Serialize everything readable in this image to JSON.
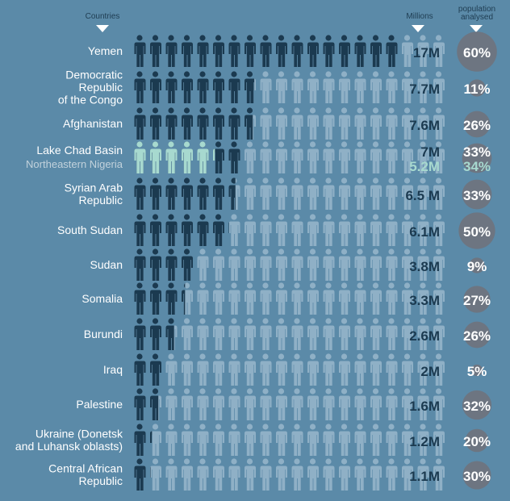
{
  "headers": {
    "countries": "Countries",
    "millions": "Millions",
    "population_analysed": [
      "population",
      "analysed"
    ]
  },
  "colors": {
    "background": "#5b8aa8",
    "affected": "#1b3a50",
    "unaffected": "#8fb0c6",
    "secondary": "#a7d9cf",
    "circle": "#6d7581"
  },
  "chart_data": {
    "type": "pictogram",
    "unit": "1 figure = 1 million people",
    "max_figures": 20,
    "rows": [
      {
        "country": [
          "Yemen"
        ],
        "value": 17,
        "value_label": "17M",
        "percent": 60,
        "percent_label": "60%"
      },
      {
        "country": [
          "Democratic",
          "Republic",
          "of the Congo"
        ],
        "value": 7.7,
        "value_label": "7.7M",
        "percent": 11,
        "percent_label": "11%"
      },
      {
        "country": [
          "Afghanistan"
        ],
        "value": 7.6,
        "value_label": "7.6M",
        "percent": 26,
        "percent_label": "26%"
      },
      {
        "country": [
          "Lake Chad Basin"
        ],
        "value": 7,
        "value_label": "7M",
        "percent": 33,
        "percent_label": "33%",
        "sub": {
          "country": "Northeastern Nigeria",
          "value": 5.2,
          "value_label": "5.2M",
          "percent": 34,
          "percent_label": "34%"
        }
      },
      {
        "country": [
          "Syrian Arab",
          "Republic"
        ],
        "value": 6.5,
        "value_label": "6.5 M",
        "percent": 33,
        "percent_label": "33%"
      },
      {
        "country": [
          "South Sudan"
        ],
        "value": 6.1,
        "value_label": "6.1M",
        "percent": 50,
        "percent_label": "50%"
      },
      {
        "country": [
          "Sudan"
        ],
        "value": 3.8,
        "value_label": "3.8M",
        "percent": 9,
        "percent_label": "9%"
      },
      {
        "country": [
          "Somalia"
        ],
        "value": 3.3,
        "value_label": "3.3M",
        "percent": 27,
        "percent_label": "27%"
      },
      {
        "country": [
          "Burundi"
        ],
        "value": 2.6,
        "value_label": "2.6M",
        "percent": 26,
        "percent_label": "26%"
      },
      {
        "country": [
          "Iraq"
        ],
        "value": 2,
        "value_label": "2M",
        "percent": 5,
        "percent_label": "5%"
      },
      {
        "country": [
          "Palestine"
        ],
        "value": 1.6,
        "value_label": "1.6M",
        "percent": 32,
        "percent_label": "32%"
      },
      {
        "country": [
          "Ukraine (Donetsk",
          "and Luhansk oblasts)"
        ],
        "value": 1.2,
        "value_label": "1.2M",
        "percent": 20,
        "percent_label": "20%"
      },
      {
        "country": [
          "Central African",
          "Republic"
        ],
        "value": 1.1,
        "value_label": "1.1M",
        "percent": 30,
        "percent_label": "30%"
      }
    ]
  }
}
